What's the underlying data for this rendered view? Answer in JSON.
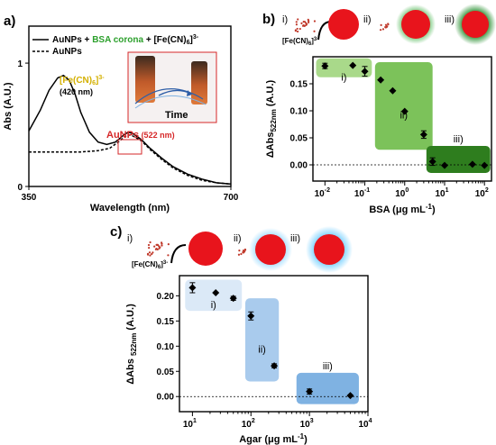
{
  "colors": {
    "nanoparticle": "#e8141c",
    "ferricyanide_dots": "#c0392b",
    "bsa_shade_i": "#a9d98a",
    "bsa_shade_ii": "#7cc25a",
    "bsa_shade_iii": "#2e7d1e",
    "agar_shade_i": "#dbe9f7",
    "agar_shade_ii": "#a9cbed",
    "agar_shade_iii": "#7fb2e2",
    "bsa_corona_text": "#2ca02c",
    "fecn_label": "#d4b000",
    "aunp_label": "#d62728",
    "inset_time": "#2f5fa8"
  },
  "chart_data": [
    {
      "panel": "a)",
      "type": "line",
      "xlabel": "Wavelength (nm)",
      "ylabel": "Abs (A.U.)",
      "xlim": [
        350,
        700
      ],
      "ylim": [
        0,
        1.3
      ],
      "xticks": [
        "350",
        "700"
      ],
      "yticks": [
        "0",
        "1"
      ],
      "legend_position": "top",
      "series": [
        {
          "name": "AuNPs + BSA corona + [Fe(CN)6]3-",
          "legend_parts": [
            "AuNPs + ",
            "BSA corona",
            " + [Fe(CN)",
            "6",
            "]",
            "3-"
          ],
          "style": "solid",
          "x": [
            350,
            370,
            385,
            400,
            410,
            420,
            430,
            440,
            455,
            470,
            485,
            500,
            515,
            522,
            530,
            545,
            560,
            580,
            600,
            625,
            650,
            675,
            700
          ],
          "y": [
            0.45,
            0.62,
            0.78,
            0.88,
            0.9,
            0.86,
            0.75,
            0.6,
            0.44,
            0.36,
            0.34,
            0.36,
            0.42,
            0.44,
            0.43,
            0.38,
            0.31,
            0.23,
            0.16,
            0.1,
            0.06,
            0.03,
            0.02
          ]
        },
        {
          "name": "AuNPs",
          "style": "dashed",
          "x": [
            350,
            380,
            410,
            440,
            470,
            490,
            505,
            515,
            522,
            530,
            545,
            560,
            580,
            600,
            625,
            650,
            675,
            700
          ],
          "y": [
            0.28,
            0.28,
            0.28,
            0.28,
            0.29,
            0.31,
            0.36,
            0.4,
            0.42,
            0.41,
            0.37,
            0.3,
            0.22,
            0.15,
            0.09,
            0.05,
            0.03,
            0.02
          ]
        }
      ],
      "annotations": [
        {
          "label_parts": [
            "[Fe(CN)",
            "6",
            "]",
            "3-"
          ],
          "sub": "(420 nm)"
        },
        {
          "label_parts": [
            "AuNPs",
            " (522 nm)"
          ]
        }
      ],
      "inset": {
        "arrow_label": "Time"
      }
    },
    {
      "panel": "b)",
      "type": "scatter",
      "xlabel_parts": [
        "BSA (",
        "μ",
        "g mL",
        "-1",
        ")"
      ],
      "ylabel_parts": [
        "ΔAbs",
        "522nm",
        " (A.U.)"
      ],
      "xscale": "log",
      "xlim": [
        0.005,
        150
      ],
      "ylim": [
        -0.03,
        0.2
      ],
      "xticks": [
        {
          "v": 0.01,
          "base": "10",
          "exp": "-2"
        },
        {
          "v": 0.1,
          "base": "10",
          "exp": "-1"
        },
        {
          "v": 1,
          "base": "10",
          "exp": "0"
        },
        {
          "v": 10,
          "base": "10",
          "exp": "1"
        },
        {
          "v": 100,
          "base": "10",
          "exp": "2"
        }
      ],
      "yticks": [
        "0.00",
        "0.05",
        "0.10",
        "0.15"
      ],
      "baseline": 0,
      "x": [
        0.01,
        0.05,
        0.1,
        0.25,
        0.5,
        1,
        3,
        5,
        10,
        50,
        100
      ],
      "y": [
        0.183,
        0.184,
        0.173,
        0.157,
        0.137,
        0.099,
        0.056,
        0.006,
        -0.001,
        0.001,
        -0.001
      ],
      "err": [
        0.005,
        0,
        0.009,
        0,
        0,
        0,
        0.007,
        0.007,
        0,
        0,
        0
      ],
      "groups": [
        {
          "label": "i)",
          "x0": 0.006,
          "x1": 0.15,
          "y0": 0.162,
          "y1": 0.197
        },
        {
          "label": "ii)",
          "x0": 0.18,
          "x1": 5,
          "y0": 0.028,
          "y1": 0.19
        },
        {
          "label": "iii)",
          "x0": 3.5,
          "x1": 140,
          "y0": -0.015,
          "y1": 0.035
        }
      ],
      "header": {
        "labels": [
          "i)",
          "ii)",
          "iii)"
        ],
        "fecn_parts": [
          "[Fe(CN)",
          "6",
          "]",
          "3-"
        ]
      }
    },
    {
      "panel": "c)",
      "type": "scatter",
      "xlabel_parts": [
        "Agar (",
        "μ",
        "g mL",
        "-1",
        ")"
      ],
      "ylabel_parts": [
        "ΔAbs ",
        "522nm",
        " (A.U.)"
      ],
      "xscale": "log",
      "xlim": [
        6,
        10000
      ],
      "ylim": [
        -0.03,
        0.24
      ],
      "xticks": [
        {
          "v": 10,
          "base": "10",
          "exp": "1"
        },
        {
          "v": 100,
          "base": "10",
          "exp": "2"
        },
        {
          "v": 1000,
          "base": "10",
          "exp": "3"
        },
        {
          "v": 10000,
          "base": "10",
          "exp": "4"
        }
      ],
      "yticks": [
        "0.00",
        "0.05",
        "0.10",
        "0.15",
        "0.20"
      ],
      "baseline": 0,
      "x": [
        10,
        25,
        50,
        100,
        250,
        1000,
        5000
      ],
      "y": [
        0.216,
        0.206,
        0.195,
        0.16,
        0.061,
        0.01,
        0.002
      ],
      "err": [
        0.01,
        0,
        0.004,
        0.008,
        0.004,
        0.005,
        0
      ],
      "groups": [
        {
          "label": "i)",
          "x0": 7.5,
          "x1": 70,
          "y0": 0.17,
          "y1": 0.232
        },
        {
          "label": "ii)",
          "x0": 80,
          "x1": 300,
          "y0": 0.03,
          "y1": 0.195
        },
        {
          "label": "iii)",
          "x0": 600,
          "x1": 7000,
          "y0": -0.015,
          "y1": 0.047
        }
      ],
      "header": {
        "labels": [
          "i)",
          "ii)",
          "iii)"
        ],
        "fecn_parts": [
          "[Fe(CN)",
          "6",
          "]",
          "3-"
        ]
      }
    }
  ]
}
